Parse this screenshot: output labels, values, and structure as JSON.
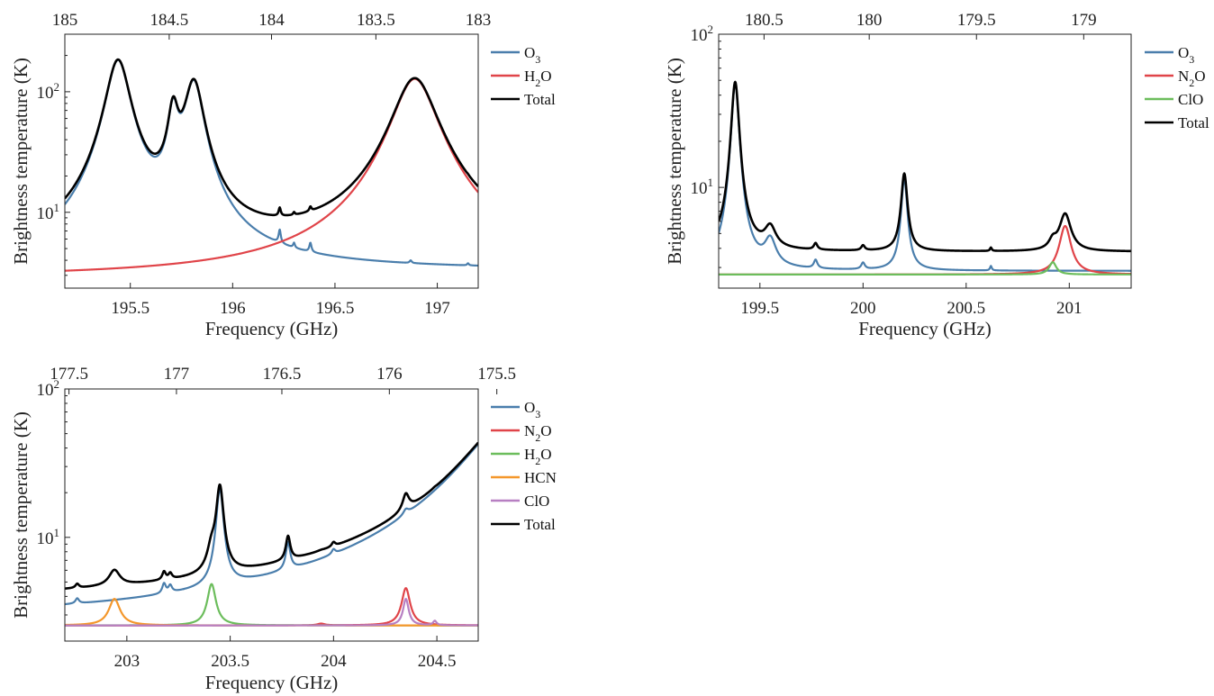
{
  "colors": {
    "O3": "#4a7eac",
    "N2O": "#e04449",
    "H2O": "#e04449",
    "ClO": "#6cbd5c",
    "HCN": "#f4972b",
    "Total": "#000000",
    "H2O_green": "#6cbd5c",
    "ClO_purple": "#b77fc2"
  },
  "chart_data": [
    {
      "type": "line",
      "xlabel": "Frequency (GHz)",
      "ylabel": "Brightness temperature (K)",
      "yscale": "log",
      "xlim": [
        195.18,
        197.2
      ],
      "ylim": [
        2.35,
        300
      ],
      "x_ticks": [
        "195.5",
        "196",
        "196.5",
        "197"
      ],
      "x_tick_values": [
        195.5,
        196,
        196.5,
        197
      ],
      "y_ticks": [
        {
          "value": 10,
          "label": "10",
          "exp": "1"
        },
        {
          "value": 100,
          "label": "10",
          "exp": "2"
        }
      ],
      "top_ticks": [
        "185",
        "184.5",
        "184",
        "183.5",
        "183"
      ],
      "top_tick_values": [
        195.18,
        195.69,
        196.19,
        196.7,
        197.2
      ],
      "legend_position": "outside-right",
      "legend": [
        {
          "base": "O",
          "sub": "3",
          "tail": "",
          "color": "#4a7eac"
        },
        {
          "base": "H",
          "sub": "2",
          "tail": "O",
          "color": "#e04449"
        },
        {
          "base": "Total",
          "sub": "",
          "tail": "",
          "color": "#000000"
        }
      ],
      "series": [
        {
          "name": "O3",
          "color": "#4a7eac",
          "lines": [
            {
              "center": 195.44,
              "amp": 178,
              "w": 0.055
            },
            {
              "center": 195.71,
              "amp": 60,
              "w": 0.025
            },
            {
              "center": 195.81,
              "amp": 115,
              "w": 0.045
            },
            {
              "center": 196.23,
              "amp": 1.6,
              "w": 0.006
            },
            {
              "center": 196.3,
              "amp": 0.5,
              "w": 0.005
            },
            {
              "center": 196.38,
              "amp": 0.9,
              "w": 0.006
            },
            {
              "center": 196.87,
              "amp": 0.2,
              "w": 0.006
            },
            {
              "center": 197.15,
              "amp": 0.15,
              "w": 0.005
            }
          ],
          "baseline": 3.3
        },
        {
          "name": "H2O",
          "color": "#e04449",
          "lines": [
            {
              "center": 196.89,
              "amp": 125,
              "w": 0.1
            }
          ],
          "baseline": 2.85
        },
        {
          "name": "Total",
          "color": "#000000",
          "sum": true
        }
      ]
    },
    {
      "type": "line",
      "xlabel": "Frequency (GHz)",
      "ylabel": "Brightness temperature (K)",
      "yscale": "log",
      "xlim": [
        199.3,
        201.3
      ],
      "ylim": [
        2.2,
        100
      ],
      "x_ticks": [
        "199.5",
        "200",
        "200.5",
        "201"
      ],
      "x_tick_values": [
        199.5,
        200,
        200.5,
        201
      ],
      "y_ticks": [
        {
          "value": 10,
          "label": "10",
          "exp": "1"
        },
        {
          "value": 100,
          "label": "10",
          "exp": "2"
        }
      ],
      "top_ticks": [
        "180.5",
        "180",
        "179.5",
        "179"
      ],
      "top_tick_values": [
        199.52,
        200.03,
        200.55,
        201.07
      ],
      "legend_position": "outside-right",
      "legend": [
        {
          "base": "O",
          "sub": "3",
          "tail": "",
          "color": "#4a7eac"
        },
        {
          "base": "N",
          "sub": "2",
          "tail": "O",
          "color": "#e04449"
        },
        {
          "base": "ClO",
          "sub": "",
          "tail": "",
          "color": "#6cbd5c"
        },
        {
          "base": "Total",
          "sub": "",
          "tail": "",
          "color": "#000000"
        }
      ],
      "series": [
        {
          "name": "O3",
          "color": "#4a7eac",
          "lines": [
            {
              "center": 199.38,
              "amp": 45,
              "w": 0.018
            },
            {
              "center": 199.55,
              "amp": 1.5,
              "w": 0.03
            },
            {
              "center": 199.77,
              "amp": 0.4,
              "w": 0.01
            },
            {
              "center": 200.0,
              "amp": 0.3,
              "w": 0.01
            },
            {
              "center": 200.2,
              "amp": 8.5,
              "w": 0.015
            },
            {
              "center": 200.62,
              "amp": 0.2,
              "w": 0.005
            }
          ],
          "baseline": 2.85
        },
        {
          "name": "N2O",
          "color": "#e04449",
          "lines": [
            {
              "center": 200.98,
              "amp": 2.9,
              "w": 0.03
            }
          ],
          "baseline": 2.7
        },
        {
          "name": "ClO",
          "color": "#6cbd5c",
          "lines": [
            {
              "center": 200.92,
              "amp": 0.55,
              "w": 0.02
            }
          ],
          "baseline": 2.7
        },
        {
          "name": "Total",
          "color": "#000000",
          "sum": true
        }
      ]
    },
    {
      "type": "line",
      "xlabel": "Frequency (GHz)",
      "ylabel": "Brightness temperature (K)",
      "yscale": "log",
      "xlim": [
        202.7,
        204.7
      ],
      "ylim": [
        2.0,
        100
      ],
      "x_ticks": [
        "203",
        "203.5",
        "204",
        "204.5"
      ],
      "x_tick_values": [
        203,
        203.5,
        204,
        204.5
      ],
      "y_ticks": [
        {
          "value": 10,
          "label": "10",
          "exp": "1"
        },
        {
          "value": 100,
          "label": "10",
          "exp": "2"
        }
      ],
      "top_ticks": [
        "177.5",
        "177",
        "176.5",
        "176",
        "175.5"
      ],
      "top_tick_values": [
        202.72,
        203.24,
        203.75,
        204.27,
        204.79
      ],
      "legend_position": "outside-right",
      "legend": [
        {
          "base": "O",
          "sub": "3",
          "tail": "",
          "color": "#4a7eac"
        },
        {
          "base": "N",
          "sub": "2",
          "tail": "O",
          "color": "#e04449"
        },
        {
          "base": "H",
          "sub": "2",
          "tail": "O",
          "color": "#6cbd5c"
        },
        {
          "base": "HCN",
          "sub": "",
          "tail": "",
          "color": "#f4972b"
        },
        {
          "base": "ClO",
          "sub": "",
          "tail": "",
          "color": "#b77fc2"
        },
        {
          "base": "Total",
          "sub": "",
          "tail": "",
          "color": "#000000"
        }
      ],
      "series": [
        {
          "name": "O3",
          "color": "#4a7eac",
          "lines": [
            {
              "center": 202.76,
              "amp": 0.3,
              "w": 0.01
            },
            {
              "center": 203.18,
              "amp": 0.7,
              "w": 0.01
            },
            {
              "center": 203.21,
              "amp": 0.5,
              "w": 0.01
            },
            {
              "center": 203.45,
              "amp": 16.5,
              "w": 0.018
            },
            {
              "center": 203.78,
              "amp": 3.2,
              "w": 0.012
            },
            {
              "center": 204.0,
              "amp": 0.6,
              "w": 0.01
            },
            {
              "center": 204.35,
              "amp": 1.2,
              "w": 0.015
            },
            {
              "center": 204.95,
              "amp": 80,
              "w": 0.25
            }
          ],
          "baseline": 2.55
        },
        {
          "name": "N2O",
          "color": "#e04449",
          "lines": [
            {
              "center": 204.35,
              "amp": 2.0,
              "w": 0.022
            },
            {
              "center": 203.94,
              "amp": 0.07,
              "w": 0.02
            }
          ],
          "baseline": 2.55
        },
        {
          "name": "H2O",
          "color": "#6cbd5c",
          "lines": [
            {
              "center": 203.41,
              "amp": 2.3,
              "w": 0.022
            }
          ],
          "baseline": 2.55
        },
        {
          "name": "HCN",
          "color": "#f4972b",
          "lines": [
            {
              "center": 202.94,
              "amp": 1.3,
              "w": 0.03
            }
          ],
          "baseline": 2.55
        },
        {
          "name": "ClO",
          "color": "#b77fc2",
          "lines": [
            {
              "center": 204.35,
              "amp": 1.3,
              "w": 0.015
            },
            {
              "center": 204.49,
              "amp": 0.18,
              "w": 0.01
            }
          ],
          "baseline": 2.55
        },
        {
          "name": "Total",
          "color": "#000000",
          "sum": true
        }
      ]
    }
  ]
}
